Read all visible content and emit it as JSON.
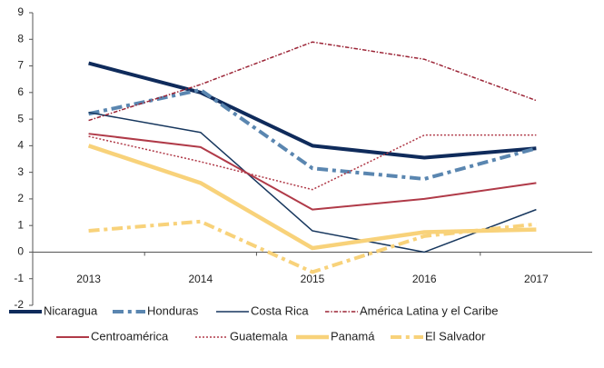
{
  "chart_data": {
    "type": "line",
    "categories": [
      "2013",
      "2014",
      "2015",
      "2016",
      "2017"
    ],
    "ylim": [
      -2,
      9
    ],
    "yticks": [
      -2,
      -1,
      0,
      1,
      2,
      3,
      4,
      5,
      6,
      7,
      8,
      9
    ],
    "grid": false,
    "series": [
      {
        "name": "Nicaragua",
        "color": "#0f2b5b",
        "line_style": "solid",
        "line_width": 4,
        "values": [
          7.1,
          6.0,
          4.0,
          3.55,
          3.9
        ]
      },
      {
        "name": "Honduras",
        "color": "#5a86b0",
        "line_style": "dashdot",
        "line_width": 4,
        "values": [
          5.2,
          6.1,
          3.15,
          2.75,
          3.9
        ]
      },
      {
        "name": "Costa Rica",
        "color": "#17375e",
        "line_style": "solid",
        "line_width": 1.5,
        "values": [
          5.25,
          4.5,
          0.8,
          0.0,
          1.6
        ]
      },
      {
        "name": "América Latina y el Caribe",
        "color": "#9b2335",
        "line_style": "dashdot",
        "line_width": 1.5,
        "values": [
          4.95,
          6.3,
          7.9,
          7.25,
          5.7
        ]
      },
      {
        "name": "Centroamérica",
        "color": "#b03a48",
        "line_style": "solid",
        "line_width": 2,
        "values": [
          4.45,
          3.95,
          1.6,
          2.0,
          2.6
        ]
      },
      {
        "name": "Guatemala",
        "color": "#b03a48",
        "line_style": "dotted",
        "line_width": 1.5,
        "values": [
          4.35,
          3.4,
          2.35,
          4.4,
          4.4
        ]
      },
      {
        "name": "Panamá",
        "color": "#f8d27a",
        "line_style": "solid",
        "line_width": 4.5,
        "values": [
          4.0,
          2.6,
          0.15,
          0.75,
          0.85
        ]
      },
      {
        "name": "El Salvador",
        "color": "#f8d27a",
        "line_style": "dashdot",
        "line_width": 4,
        "values": [
          0.8,
          1.15,
          -0.75,
          0.6,
          1.05
        ]
      }
    ]
  }
}
